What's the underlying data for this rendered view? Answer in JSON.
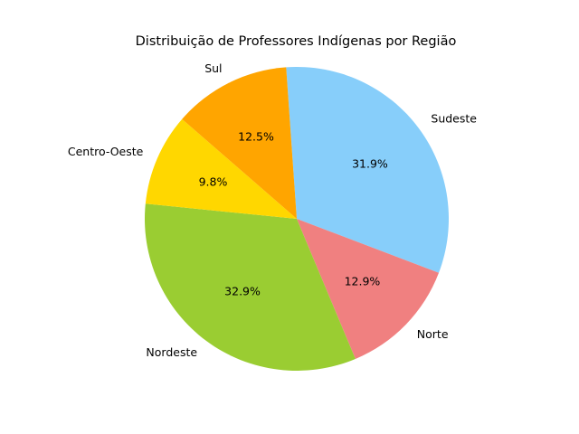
{
  "chart_data": {
    "type": "pie",
    "title": "Distribuição de Professores Indígenas por Região",
    "slices": [
      {
        "label": "Sudeste",
        "value": 31.9,
        "pct_label": "31.9%",
        "color": "#87CEFA"
      },
      {
        "label": "Norte",
        "value": 12.9,
        "pct_label": "12.9%",
        "color": "#F08080"
      },
      {
        "label": "Nordeste",
        "value": 32.9,
        "pct_label": "32.9%",
        "color": "#9ACD32"
      },
      {
        "label": "Centro-Oeste",
        "value": 9.8,
        "pct_label": "9.8%",
        "color": "#FFD700"
      },
      {
        "label": "Sul",
        "value": 12.5,
        "pct_label": "12.5%",
        "color": "#FFA500"
      }
    ],
    "legend": false
  }
}
